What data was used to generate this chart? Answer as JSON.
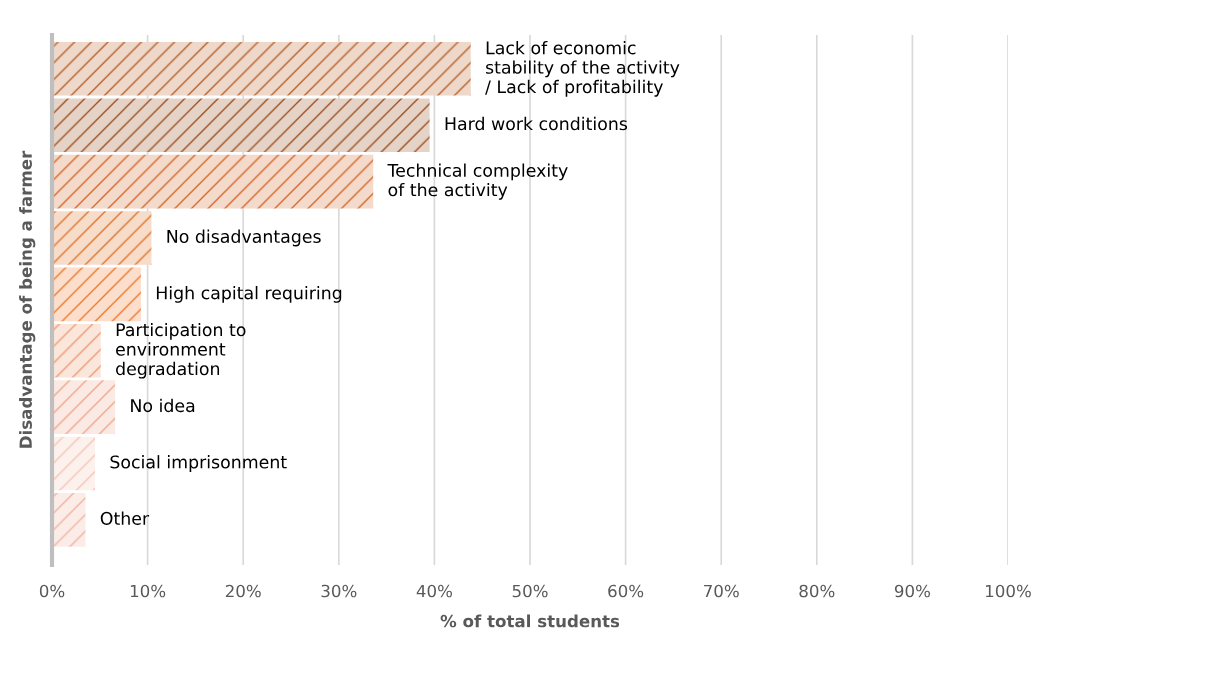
{
  "chart_data": {
    "type": "bar",
    "orientation": "horizontal",
    "ylabel": "Disadvantage of being a farmer",
    "xlabel": "% of total students",
    "categories": [
      "Lack of economic\nstability of the activity\n/ Lack of profitability",
      "Hard work conditions",
      "Technical complexity\nof the activity",
      "No disadvantages",
      "High capital requiring",
      "Participation to\nenvironment\ndegradation",
      "No idea",
      "Social imprisonment",
      "Other"
    ],
    "values": [
      43.8,
      39.5,
      33.6,
      10.4,
      9.3,
      5.1,
      6.6,
      4.5,
      3.5
    ],
    "colors": [
      "#b8612a",
      "#9c5020",
      "#d4692a",
      "#e0742c",
      "#ee7a2e",
      "#ee9a74",
      "#f0a88e",
      "#f4c6b6",
      "#f0b4a2"
    ],
    "xlim": [
      0,
      100
    ],
    "xticks": [
      {
        "value": 0,
        "label": "0%"
      },
      {
        "value": 10,
        "label": "10%"
      },
      {
        "value": 20,
        "label": "20%"
      },
      {
        "value": 30,
        "label": "30%"
      },
      {
        "value": 40,
        "label": "40%"
      },
      {
        "value": 50,
        "label": "50%"
      },
      {
        "value": 60,
        "label": "60%"
      },
      {
        "value": 70,
        "label": "70%"
      },
      {
        "value": 80,
        "label": "80%"
      },
      {
        "value": 90,
        "label": "90%"
      },
      {
        "value": 100,
        "label": "100%"
      }
    ],
    "grid": "x"
  }
}
